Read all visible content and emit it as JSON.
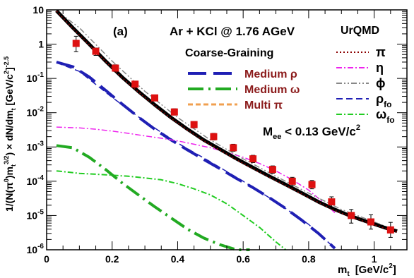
{
  "chart_data": {
    "type": "line",
    "panel_label": "(a)",
    "title": "Ar + KCl @ 1.76 AGeV",
    "xlabel": {
      "main": "m",
      "sub": "t",
      "unit": "[GeV/c",
      "sup": "2",
      "end": "]"
    },
    "ylabel": {
      "p1": "1/(N(π",
      "p1sup": "0",
      "p2": ")m",
      "p2sub": "t",
      "p2sup": "3/2",
      "p3": ") × dN/dm",
      "p3sub": "t",
      "p4": " [GeV/c",
      "p4sup": "2",
      "p5": "]",
      "p5sup": "-2.5"
    },
    "cut": {
      "pre": "M",
      "sub": "ee",
      "post": " < 0.13 GeV/c",
      "sup": "2"
    },
    "x_scale": "linear",
    "y_scale": "log",
    "xlim": [
      0,
      1.1
    ],
    "ylim": [
      1e-06,
      10
    ],
    "x_ticks": [
      {
        "value": 0,
        "label": "0"
      },
      {
        "value": 0.2,
        "label": "0.2"
      },
      {
        "value": 0.4,
        "label": "0.4"
      },
      {
        "value": 0.6,
        "label": "0.6"
      },
      {
        "value": 0.8,
        "label": "0.8"
      },
      {
        "value": 1.0,
        "label": "1"
      }
    ],
    "y_ticks": [
      {
        "value": 1e-06,
        "base": "10",
        "exp": "-6"
      },
      {
        "value": 1e-05,
        "base": "10",
        "exp": "-5"
      },
      {
        "value": 0.0001,
        "base": "10",
        "exp": "-4"
      },
      {
        "value": 0.001,
        "base": "10",
        "exp": "-3"
      },
      {
        "value": 0.01,
        "base": "10",
        "exp": "-2"
      },
      {
        "value": 0.1,
        "base": "10",
        "exp": "-1"
      },
      {
        "value": 1,
        "base": "1",
        "exp": ""
      },
      {
        "value": 10,
        "base": "10",
        "exp": ""
      }
    ],
    "legend_cg": {
      "title": "Coarse-Graining",
      "entries": [
        {
          "key": "medium_rho",
          "label": "Medium ρ",
          "color": "#1f1fb4",
          "dash": "long"
        },
        {
          "key": "medium_omega",
          "label": "Medium ω",
          "color": "#22aa22",
          "dash": "longdot"
        },
        {
          "key": "multi_pi",
          "label": "Multi π",
          "color": "#f0a050",
          "dash": "short"
        }
      ]
    },
    "legend_urqmd": {
      "title": "UrQMD",
      "entries": [
        {
          "key": "pi",
          "label": "π",
          "sub": "",
          "color": "#8b0000",
          "dash": "dot"
        },
        {
          "key": "eta",
          "label": "η",
          "sub": "",
          "color": "#ee22ee",
          "dash": "dashdot"
        },
        {
          "key": "phi",
          "label": "ϕ",
          "sub": "",
          "color": "#888888",
          "dash": "dashdotdot"
        },
        {
          "key": "rho_fo",
          "label": "ρ",
          "sub": "fo",
          "color": "#1f1fb4",
          "dash": "dash"
        },
        {
          "key": "omega_fo",
          "label": "ω",
          "sub": "fo",
          "color": "#22cc22",
          "dash": "dashdot"
        }
      ]
    },
    "data_points": {
      "color": "#dd1111",
      "points": [
        {
          "x": 0.09,
          "y": 1.05,
          "yerr_lo": 0.45,
          "yerr_hi": 0.65
        },
        {
          "x": 0.15,
          "y": 0.62,
          "yerr_lo": 0.15,
          "yerr_hi": 0.15
        },
        {
          "x": 0.21,
          "y": 0.2,
          "yerr_lo": 0.04,
          "yerr_hi": 0.05
        },
        {
          "x": 0.27,
          "y": 0.068,
          "yerr_lo": 0.012,
          "yerr_hi": 0.015
        },
        {
          "x": 0.33,
          "y": 0.027,
          "yerr_lo": 0.005,
          "yerr_hi": 0.006
        },
        {
          "x": 0.39,
          "y": 0.0105,
          "yerr_lo": 0.002,
          "yerr_hi": 0.0025
        },
        {
          "x": 0.45,
          "y": 0.0045,
          "yerr_lo": 0.0009,
          "yerr_hi": 0.001
        },
        {
          "x": 0.51,
          "y": 0.002,
          "yerr_lo": 0.0004,
          "yerr_hi": 0.0005
        },
        {
          "x": 0.57,
          "y": 0.00095,
          "yerr_lo": 0.0002,
          "yerr_hi": 0.00025
        },
        {
          "x": 0.63,
          "y": 0.00045,
          "yerr_lo": 0.0001,
          "yerr_hi": 0.00012
        },
        {
          "x": 0.69,
          "y": 0.00022,
          "yerr_lo": 5e-05,
          "yerr_hi": 6e-05
        },
        {
          "x": 0.75,
          "y": 0.0001,
          "yerr_lo": 2.5e-05,
          "yerr_hi": 3e-05
        },
        {
          "x": 0.81,
          "y": 8e-05,
          "yerr_lo": 2e-05,
          "yerr_hi": 2.5e-05
        },
        {
          "x": 0.87,
          "y": 2.5e-05,
          "yerr_lo": 8e-06,
          "yerr_hi": 1e-05
        },
        {
          "x": 0.93,
          "y": 1e-05,
          "yerr_lo": 4e-06,
          "yerr_hi": 5e-06
        },
        {
          "x": 0.99,
          "y": 6.5e-06,
          "yerr_lo": 2.5e-06,
          "yerr_hi": 4e-06
        },
        {
          "x": 1.05,
          "y": 3.8e-06,
          "yerr_lo": 1.5e-06,
          "yerr_hi": 2.5e-06
        }
      ]
    },
    "series": [
      {
        "key": "total",
        "color": "#000000",
        "dash": "solid",
        "width": 5,
        "x": [
          0.03,
          0.08,
          0.13,
          0.18,
          0.23,
          0.28,
          0.33,
          0.38,
          0.43,
          0.48,
          0.53,
          0.58,
          0.63,
          0.68,
          0.73,
          0.78,
          0.83,
          0.88,
          0.93,
          0.98,
          1.03,
          1.07
        ],
        "y": [
          9.5,
          3.0,
          1.0,
          0.32,
          0.11,
          0.042,
          0.017,
          0.0072,
          0.0033,
          0.0016,
          0.00085,
          0.00045,
          0.00025,
          0.00014,
          8e-05,
          4.5e-05,
          2.5e-05,
          1.5e-05,
          9.5e-06,
          6.5e-06,
          4.5e-06,
          3.5e-06
        ]
      },
      {
        "key": "pi",
        "color": "#8b0000",
        "dash": "dot",
        "width": 1.5,
        "x": [
          0.03,
          0.08,
          0.13,
          0.18,
          0.23,
          0.28,
          0.33,
          0.38,
          0.43,
          0.48,
          0.53,
          0.58,
          0.63,
          0.68,
          0.73,
          0.78,
          0.83,
          0.88,
          0.93,
          0.98,
          1.03,
          1.07
        ],
        "y": [
          9.2,
          2.9,
          0.95,
          0.31,
          0.105,
          0.04,
          0.016,
          0.0068,
          0.0031,
          0.0015,
          0.0008,
          0.00042,
          0.00023,
          0.00013,
          7.5e-05,
          4.2e-05,
          2.4e-05,
          1.4e-05,
          9e-06,
          6.2e-06,
          4.3e-06,
          3.3e-06
        ]
      },
      {
        "key": "eta",
        "color": "#ee22ee",
        "dash": "dashdot",
        "width": 1.5,
        "x": [
          0.03,
          0.1,
          0.15,
          0.2,
          0.25,
          0.3,
          0.35,
          0.4,
          0.45,
          0.5,
          0.55,
          0.6,
          0.65,
          0.7,
          0.75,
          0.8,
          0.85,
          0.88
        ],
        "y": [
          0.0038,
          0.0036,
          0.0033,
          0.0029,
          0.0025,
          0.0021,
          0.0018,
          0.0015,
          0.0012,
          0.00095,
          0.0007,
          0.0005,
          0.00033,
          0.0002,
          0.00011,
          5.5e-05,
          2.2e-05,
          1.2e-05
        ]
      },
      {
        "key": "phi",
        "color": "#888888",
        "dash": "dashdotdot",
        "width": 1.5,
        "x": [
          0.03,
          0.1,
          0.2,
          0.3,
          0.4,
          0.5,
          0.6,
          0.7,
          0.8,
          0.9,
          1.0,
          1.07
        ],
        "y": [
          9.5,
          3.0,
          0.32,
          0.042,
          0.0072,
          0.0016,
          0.00045,
          0.00014,
          4.5e-05,
          1.5e-05,
          6.5e-06,
          3.5e-06
        ]
      },
      {
        "key": "medium_rho",
        "color": "#1f1fb4",
        "dash": "long",
        "width": 4,
        "x": [
          0.03,
          0.08,
          0.13,
          0.18,
          0.23,
          0.28,
          0.33,
          0.38,
          0.43,
          0.48,
          0.53,
          0.58,
          0.63,
          0.68,
          0.73,
          0.78,
          0.83,
          0.88
        ],
        "y": [
          0.3,
          0.22,
          0.11,
          0.045,
          0.018,
          0.0075,
          0.0033,
          0.0016,
          0.00082,
          0.00043,
          0.00023,
          0.00012,
          6.5e-05,
          3.3e-05,
          1.6e-05,
          7.2e-06,
          3e-06,
          1.1e-06
        ]
      },
      {
        "key": "rho_fo",
        "color": "#1f1fb4",
        "dash": "dash",
        "width": 1.5,
        "x": [
          0.03,
          0.1,
          0.2,
          0.3,
          0.4,
          0.5,
          0.6,
          0.7,
          0.8,
          0.88
        ],
        "y": [
          0.29,
          0.16,
          0.028,
          0.0055,
          0.0013,
          0.00037,
          0.0001,
          2.5e-05,
          5.5e-06,
          1.1e-06
        ]
      },
      {
        "key": "medium_omega",
        "color": "#22aa22",
        "dash": "longdot",
        "width": 4,
        "x": [
          0.03,
          0.08,
          0.13,
          0.18,
          0.23,
          0.28,
          0.33,
          0.38,
          0.43,
          0.48,
          0.53,
          0.58,
          0.62
        ],
        "y": [
          0.0011,
          0.00095,
          0.0005,
          0.00022,
          9e-05,
          4e-05,
          1.8e-05,
          8.5e-06,
          4e-06,
          2.2e-06,
          1.4e-06,
          1e-06,
          9e-07
        ]
      },
      {
        "key": "omega_fo",
        "color": "#22cc22",
        "dash": "dashdot",
        "width": 2,
        "x": [
          0.03,
          0.1,
          0.15,
          0.2,
          0.25,
          0.3,
          0.35,
          0.4,
          0.45,
          0.5,
          0.55,
          0.6,
          0.65,
          0.7,
          0.73
        ],
        "y": [
          0.0002,
          0.00017,
          0.00016,
          0.00015,
          0.00014,
          0.000125,
          0.00011,
          8.5e-05,
          6e-05,
          4e-05,
          2.2e-05,
          1e-05,
          4.5e-06,
          1.7e-06,
          1e-06
        ]
      }
    ]
  }
}
